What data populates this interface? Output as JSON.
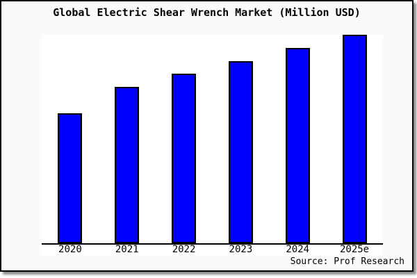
{
  "chart_data": {
    "type": "bar",
    "title": "Global Electric Shear Wrench Market (Million USD)",
    "categories": [
      "2020",
      "2021",
      "2022",
      "2023",
      "2024",
      "2025e"
    ],
    "values": [
      100,
      120,
      130,
      140,
      150,
      160
    ],
    "value_note": "No y-axis labels shown in chart; values are relative estimates from bar heights (ratio 10:12:13:14:15:16, 2020 indexed to 100)",
    "ylim": [
      0,
      160
    ],
    "xlabel": "",
    "ylabel": "",
    "grid": false,
    "legend": false,
    "y_axis_visible": false,
    "source": "Source: Prof Research"
  },
  "colors": {
    "bar_fill": "#0000ff",
    "bar_edge": "#000000",
    "figure_background": "#fafafa",
    "plot_background": "#ffffff",
    "axis_line": "#000000",
    "frame_border": "#000000",
    "text": "#000000"
  }
}
